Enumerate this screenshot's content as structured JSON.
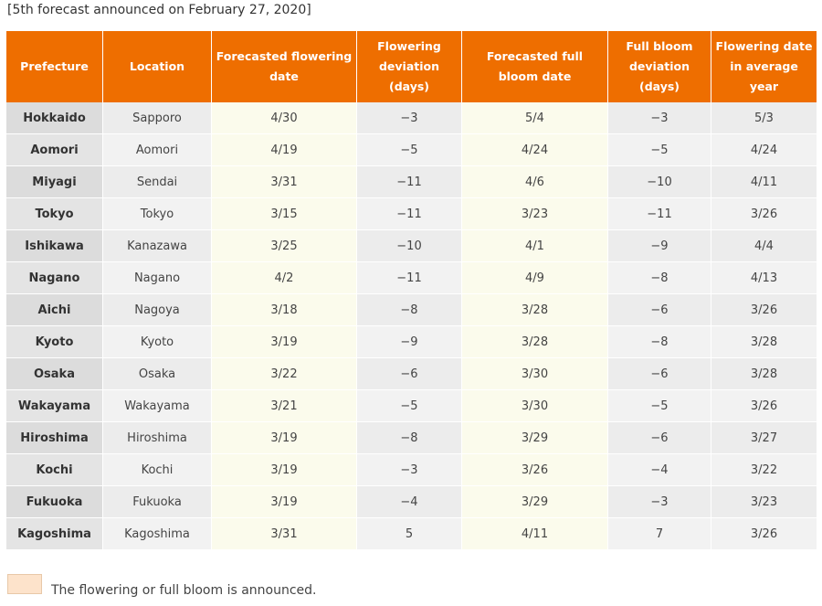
{
  "caption": "[5th forecast announced on February 27, 2020]",
  "table": {
    "headers": [
      "Prefecture",
      "Location",
      "Forecasted flowering date",
      "Flowering deviation (days)",
      "Forecasted full bloom date",
      "Full bloom deviation (days)",
      "Flowering date in average year"
    ],
    "rows": [
      [
        "Hokkaido",
        "Sapporo",
        "4/30",
        "−3",
        "5/4",
        "−3",
        "5/3"
      ],
      [
        "Aomori",
        "Aomori",
        "4/19",
        "−5",
        "4/24",
        "−5",
        "4/24"
      ],
      [
        "Miyagi",
        "Sendai",
        "3/31",
        "−11",
        "4/6",
        "−10",
        "4/11"
      ],
      [
        "Tokyo",
        "Tokyo",
        "3/15",
        "−11",
        "3/23",
        "−11",
        "3/26"
      ],
      [
        "Ishikawa",
        "Kanazawa",
        "3/25",
        "−10",
        "4/1",
        "−9",
        "4/4"
      ],
      [
        "Nagano",
        "Nagano",
        "4/2",
        "−11",
        "4/9",
        "−8",
        "4/13"
      ],
      [
        "Aichi",
        "Nagoya",
        "3/18",
        "−8",
        "3/28",
        "−6",
        "3/26"
      ],
      [
        "Kyoto",
        "Kyoto",
        "3/19",
        "−9",
        "3/28",
        "−8",
        "3/28"
      ],
      [
        "Osaka",
        "Osaka",
        "3/22",
        "−6",
        "3/30",
        "−6",
        "3/28"
      ],
      [
        "Wakayama",
        "Wakayama",
        "3/21",
        "−5",
        "3/30",
        "−5",
        "3/26"
      ],
      [
        "Hiroshima",
        "Hiroshima",
        "3/19",
        "−8",
        "3/29",
        "−6",
        "3/27"
      ],
      [
        "Kochi",
        "Kochi",
        "3/19",
        "−3",
        "3/26",
        "−4",
        "3/22"
      ],
      [
        "Fukuoka",
        "Fukuoka",
        "3/19",
        "−4",
        "3/29",
        "−3",
        "3/23"
      ],
      [
        "Kagoshima",
        "Kagoshima",
        "3/31",
        "5",
        "4/11",
        "7",
        "3/26"
      ]
    ]
  },
  "legend": {
    "swatch_color": "#fde3cb",
    "text": "The flowering or full bloom is announced."
  },
  "colors": {
    "header_bg": "#ee6e00",
    "header_text": "#ffffff"
  }
}
